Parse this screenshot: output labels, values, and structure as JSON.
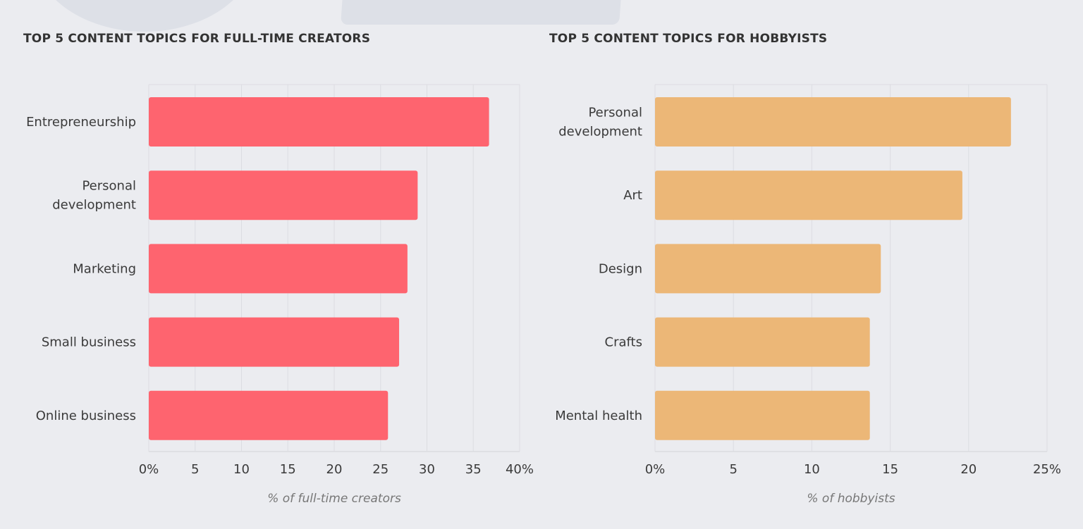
{
  "chart_data": [
    {
      "type": "bar",
      "orientation": "horizontal",
      "title": "TOP 5 CONTENT TOPICS FOR FULL-TIME CREATORS",
      "xlabel": "% of full-time creators",
      "categories": [
        "Entrepreneurship",
        "Personal development",
        "Marketing",
        "Small business",
        "Online business"
      ],
      "category_lines": [
        [
          "Entrepreneurship"
        ],
        [
          "Personal",
          "development"
        ],
        [
          "Marketing"
        ],
        [
          "Small business"
        ],
        [
          "Online business"
        ]
      ],
      "values": [
        36.7,
        29.0,
        27.9,
        27.0,
        25.8
      ],
      "xlim": [
        0,
        40
      ],
      "ticks": [
        0,
        5,
        10,
        15,
        20,
        25,
        30,
        35,
        40
      ],
      "tick_labels": [
        "0%",
        "5",
        "10",
        "15",
        "20",
        "25",
        "30",
        "35",
        "40%"
      ],
      "grid": true,
      "color": "#fe646f"
    },
    {
      "type": "bar",
      "orientation": "horizontal",
      "title": "TOP 5 CONTENT TOPICS FOR HOBBYISTS",
      "xlabel": "% of hobbyists",
      "categories": [
        "Personal development",
        "Art",
        "Design",
        "Crafts",
        "Mental health"
      ],
      "category_lines": [
        [
          "Personal",
          "development"
        ],
        [
          "Art"
        ],
        [
          "Design"
        ],
        [
          "Crafts"
        ],
        [
          "Mental health"
        ]
      ],
      "values": [
        22.7,
        19.6,
        14.4,
        13.7,
        13.7
      ],
      "xlim": [
        0,
        25
      ],
      "ticks": [
        0,
        5,
        10,
        15,
        20,
        25
      ],
      "tick_labels": [
        "0%",
        "5",
        "10",
        "15",
        "20",
        "25%"
      ],
      "grid": true,
      "color": "#ecb777"
    }
  ]
}
